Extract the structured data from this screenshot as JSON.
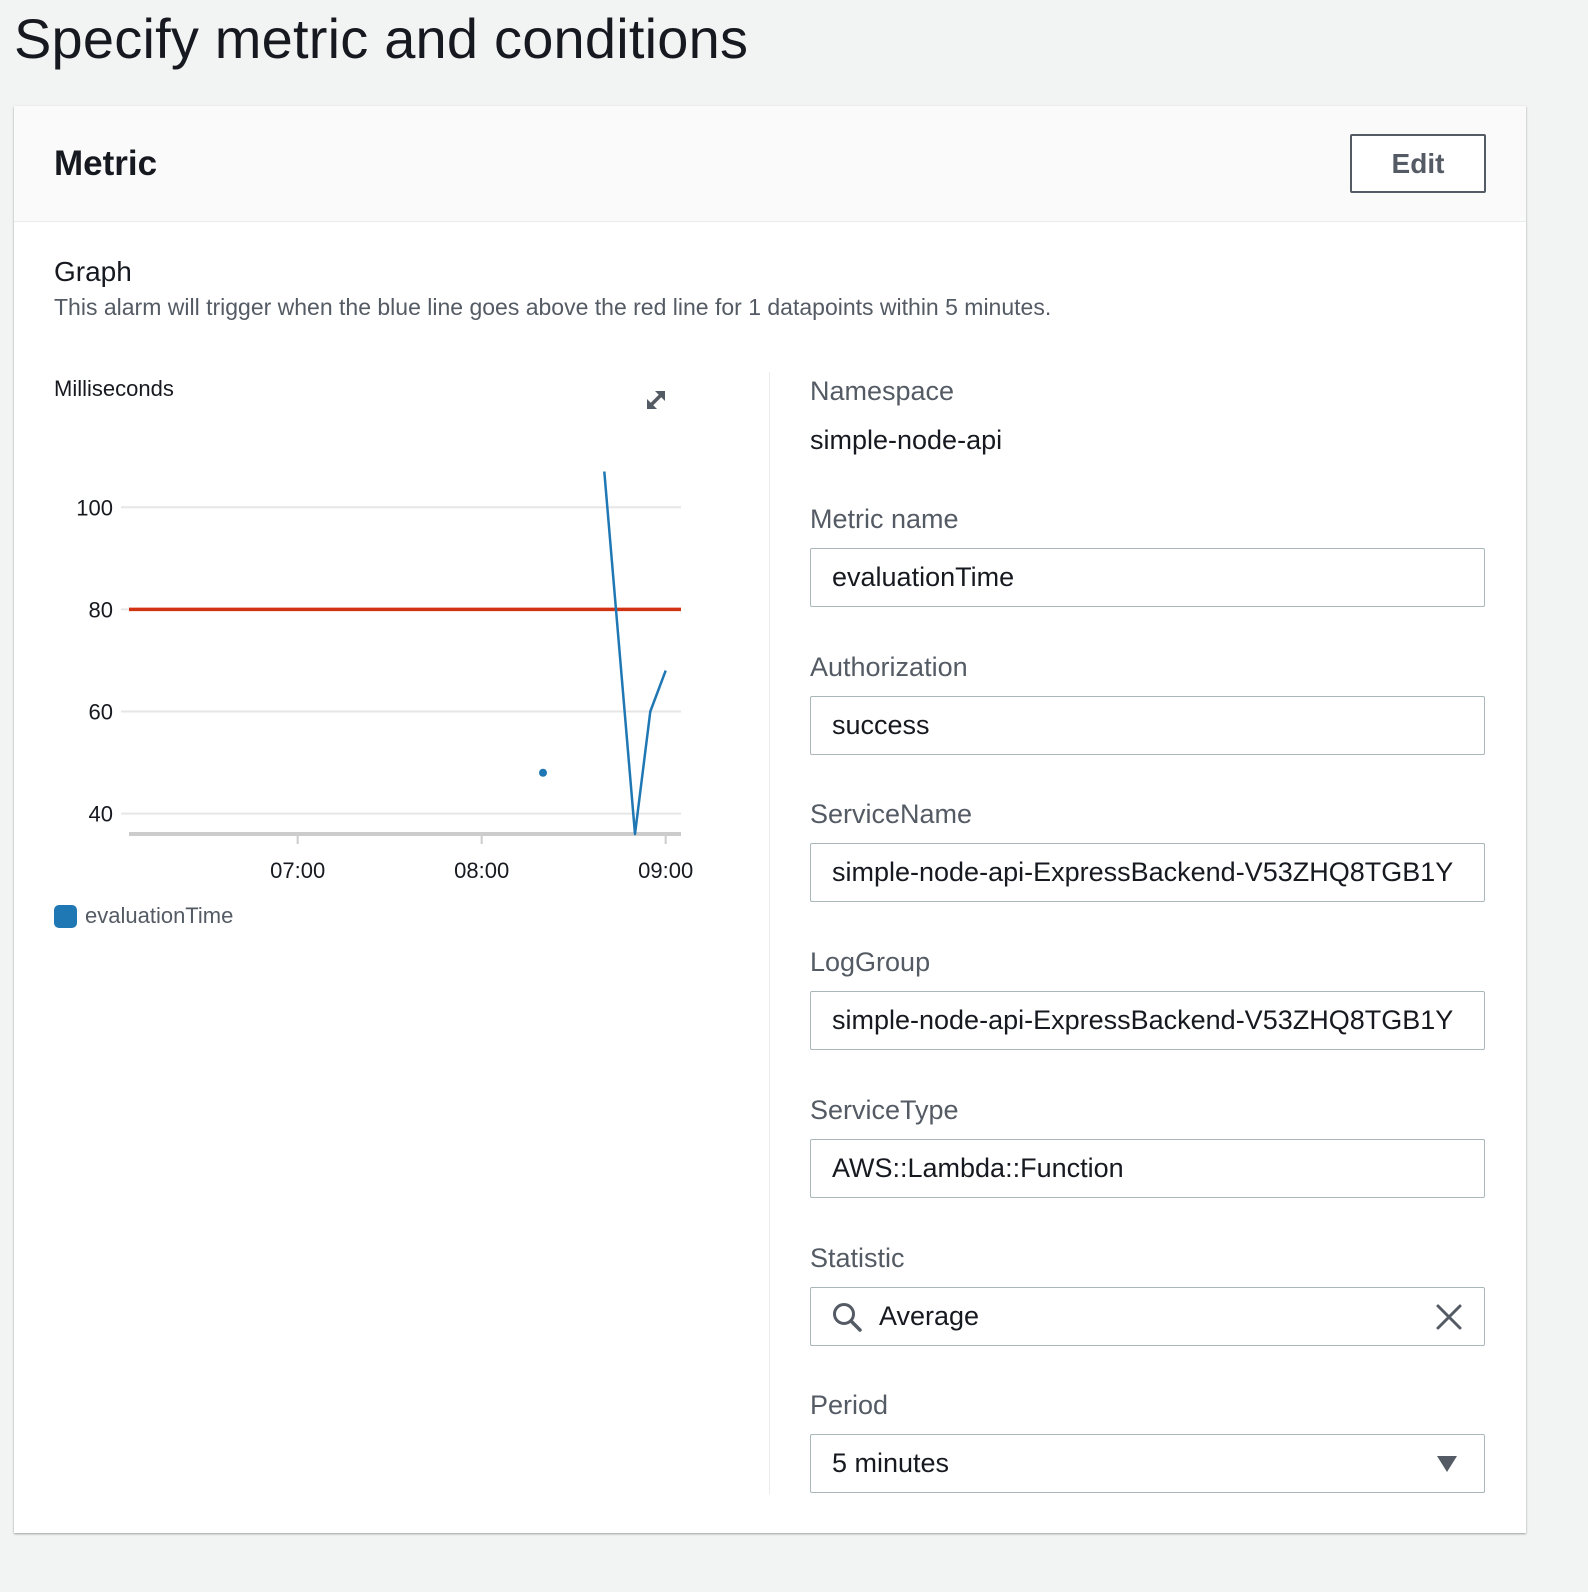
{
  "page": {
    "title": "Specify metric and conditions"
  },
  "panel": {
    "title": "Metric",
    "edit_label": "Edit",
    "graph": {
      "heading": "Graph",
      "description": "This alarm will trigger when the blue line goes above the red line for 1 datapoints within 5 minutes."
    },
    "icons": {
      "expand": "expand-icon",
      "search": "search-icon",
      "clear": "close-icon",
      "dropdown": "caret-down-icon"
    },
    "fields": {
      "namespace": {
        "label": "Namespace",
        "value": "simple-node-api"
      },
      "metric_name": {
        "label": "Metric name",
        "value": "evaluationTime"
      },
      "authorization": {
        "label": "Authorization",
        "value": "success"
      },
      "service_name": {
        "label": "ServiceName",
        "value": "simple-node-api-ExpressBackend-V53ZHQ8TGB1Y"
      },
      "log_group": {
        "label": "LogGroup",
        "value": "simple-node-api-ExpressBackend-V53ZHQ8TGB1Y"
      },
      "service_type": {
        "label": "ServiceType",
        "value": "AWS::Lambda::Function"
      },
      "statistic": {
        "label": "Statistic",
        "value": "Average"
      },
      "period": {
        "label": "Period",
        "value": "5 minutes"
      }
    }
  },
  "chart_data": {
    "type": "line",
    "ylabel": "Milliseconds",
    "ylim": [
      36,
      112
    ],
    "yticks": [
      40,
      60,
      80,
      100
    ],
    "xlim": [
      "06:05",
      "09:05"
    ],
    "xticks": [
      "07:00",
      "08:00",
      "09:00"
    ],
    "grid": true,
    "legend_position": "bottom-left",
    "colors": {
      "series": "#1f77b4",
      "threshold": "#d13212",
      "grid": "#e6e6e6",
      "axis": "#cccccc"
    },
    "series": [
      {
        "name": "evaluationTime",
        "points": [
          {
            "x": "08:20",
            "y": 48
          },
          {
            "x": "08:40",
            "y": 107
          },
          {
            "x": "08:50",
            "y": 36
          },
          {
            "x": "08:55",
            "y": 60
          },
          {
            "x": "09:00",
            "y": 68
          }
        ],
        "segments": [
          [
            0
          ],
          [
            1,
            2,
            3,
            4
          ]
        ]
      }
    ],
    "threshold": {
      "value": 80
    }
  }
}
